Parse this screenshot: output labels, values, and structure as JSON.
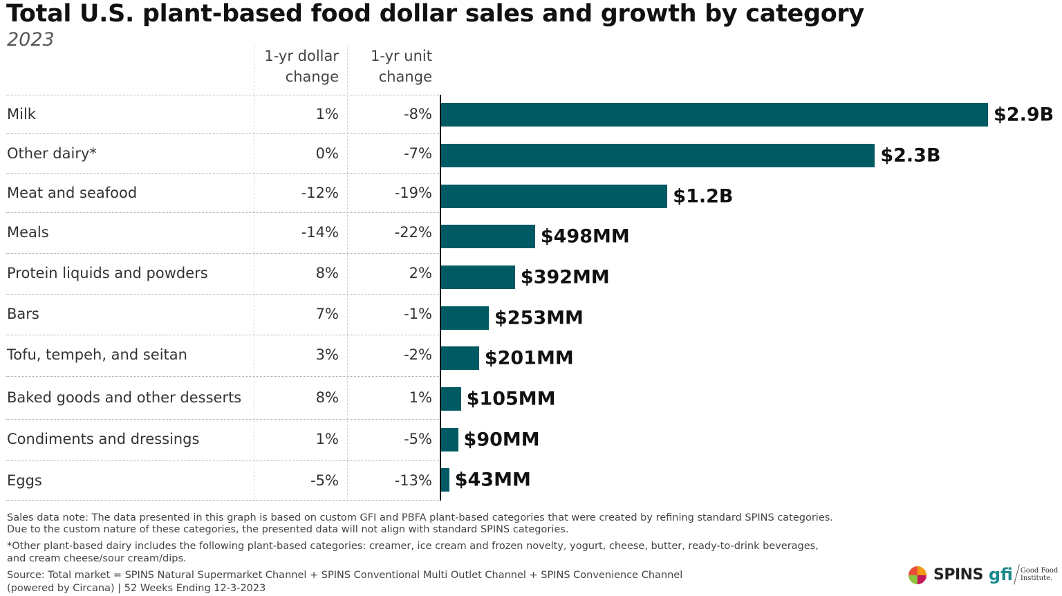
{
  "title": "Total U.S. plant-based food dollar sales and growth by category",
  "subtitle": "2023",
  "headers": {
    "dollar_change": [
      "1-yr dollar",
      "change"
    ],
    "unit_change": [
      "1-yr unit",
      "change"
    ]
  },
  "colors": {
    "bar": "#005a64"
  },
  "chart_data": {
    "type": "bar",
    "orientation": "horizontal",
    "title": "Total U.S. plant-based food dollar sales and growth by category",
    "subtitle": "2023",
    "unit": "USD millions",
    "categories": [
      "Milk",
      "Other dairy*",
      "Meat and seafood",
      "Meals",
      "Protein liquids and powders",
      "Bars",
      "Tofu, tempeh, and seitan",
      "Baked goods and other desserts",
      "Condiments and dressings",
      "Eggs"
    ],
    "values": [
      2900,
      2300,
      1200,
      498,
      392,
      253,
      201,
      105,
      90,
      43
    ],
    "data_labels": [
      "$2.9B",
      "$2.3B",
      "$1.2B",
      "$498MM",
      "$392MM",
      "$253MM",
      "$201MM",
      "$105MM",
      "$90MM",
      "$43MM"
    ],
    "dollar_change": [
      "1%",
      "0%",
      "-12%",
      "-14%",
      "8%",
      "7%",
      "3%",
      "8%",
      "1%",
      "-5%"
    ],
    "unit_change": [
      "-8%",
      "-7%",
      "-19%",
      "-22%",
      "2%",
      "-1%",
      "-2%",
      "1%",
      "-5%",
      "-13%"
    ],
    "grid": false
  },
  "notes": [
    "Sales data note: The data presented in this graph is based on custom GFI and PBFA plant-based categories that were created by refining standard SPINS categories.",
    "Due to the custom nature of these categories, the presented data will not align with standard SPINS categories.",
    "*Other plant-based dairy includes the following plant-based categories: creamer, ice cream and frozen novelty, yogurt, cheese, butter, ready-to-drink beverages,",
    "and cream cheese/sour cream/dips.",
    "Source: Total market = SPINS Natural Supermarket Channel + SPINS Conventional Multi Outlet Channel + SPINS Convenience Channel",
    "(powered by Circana) | 52 Weeks Ending 12-3-2023"
  ],
  "logos": {
    "spins": "SPINS",
    "gfi": "gfi",
    "gfi_name": [
      "Good Food",
      "Institute."
    ]
  }
}
